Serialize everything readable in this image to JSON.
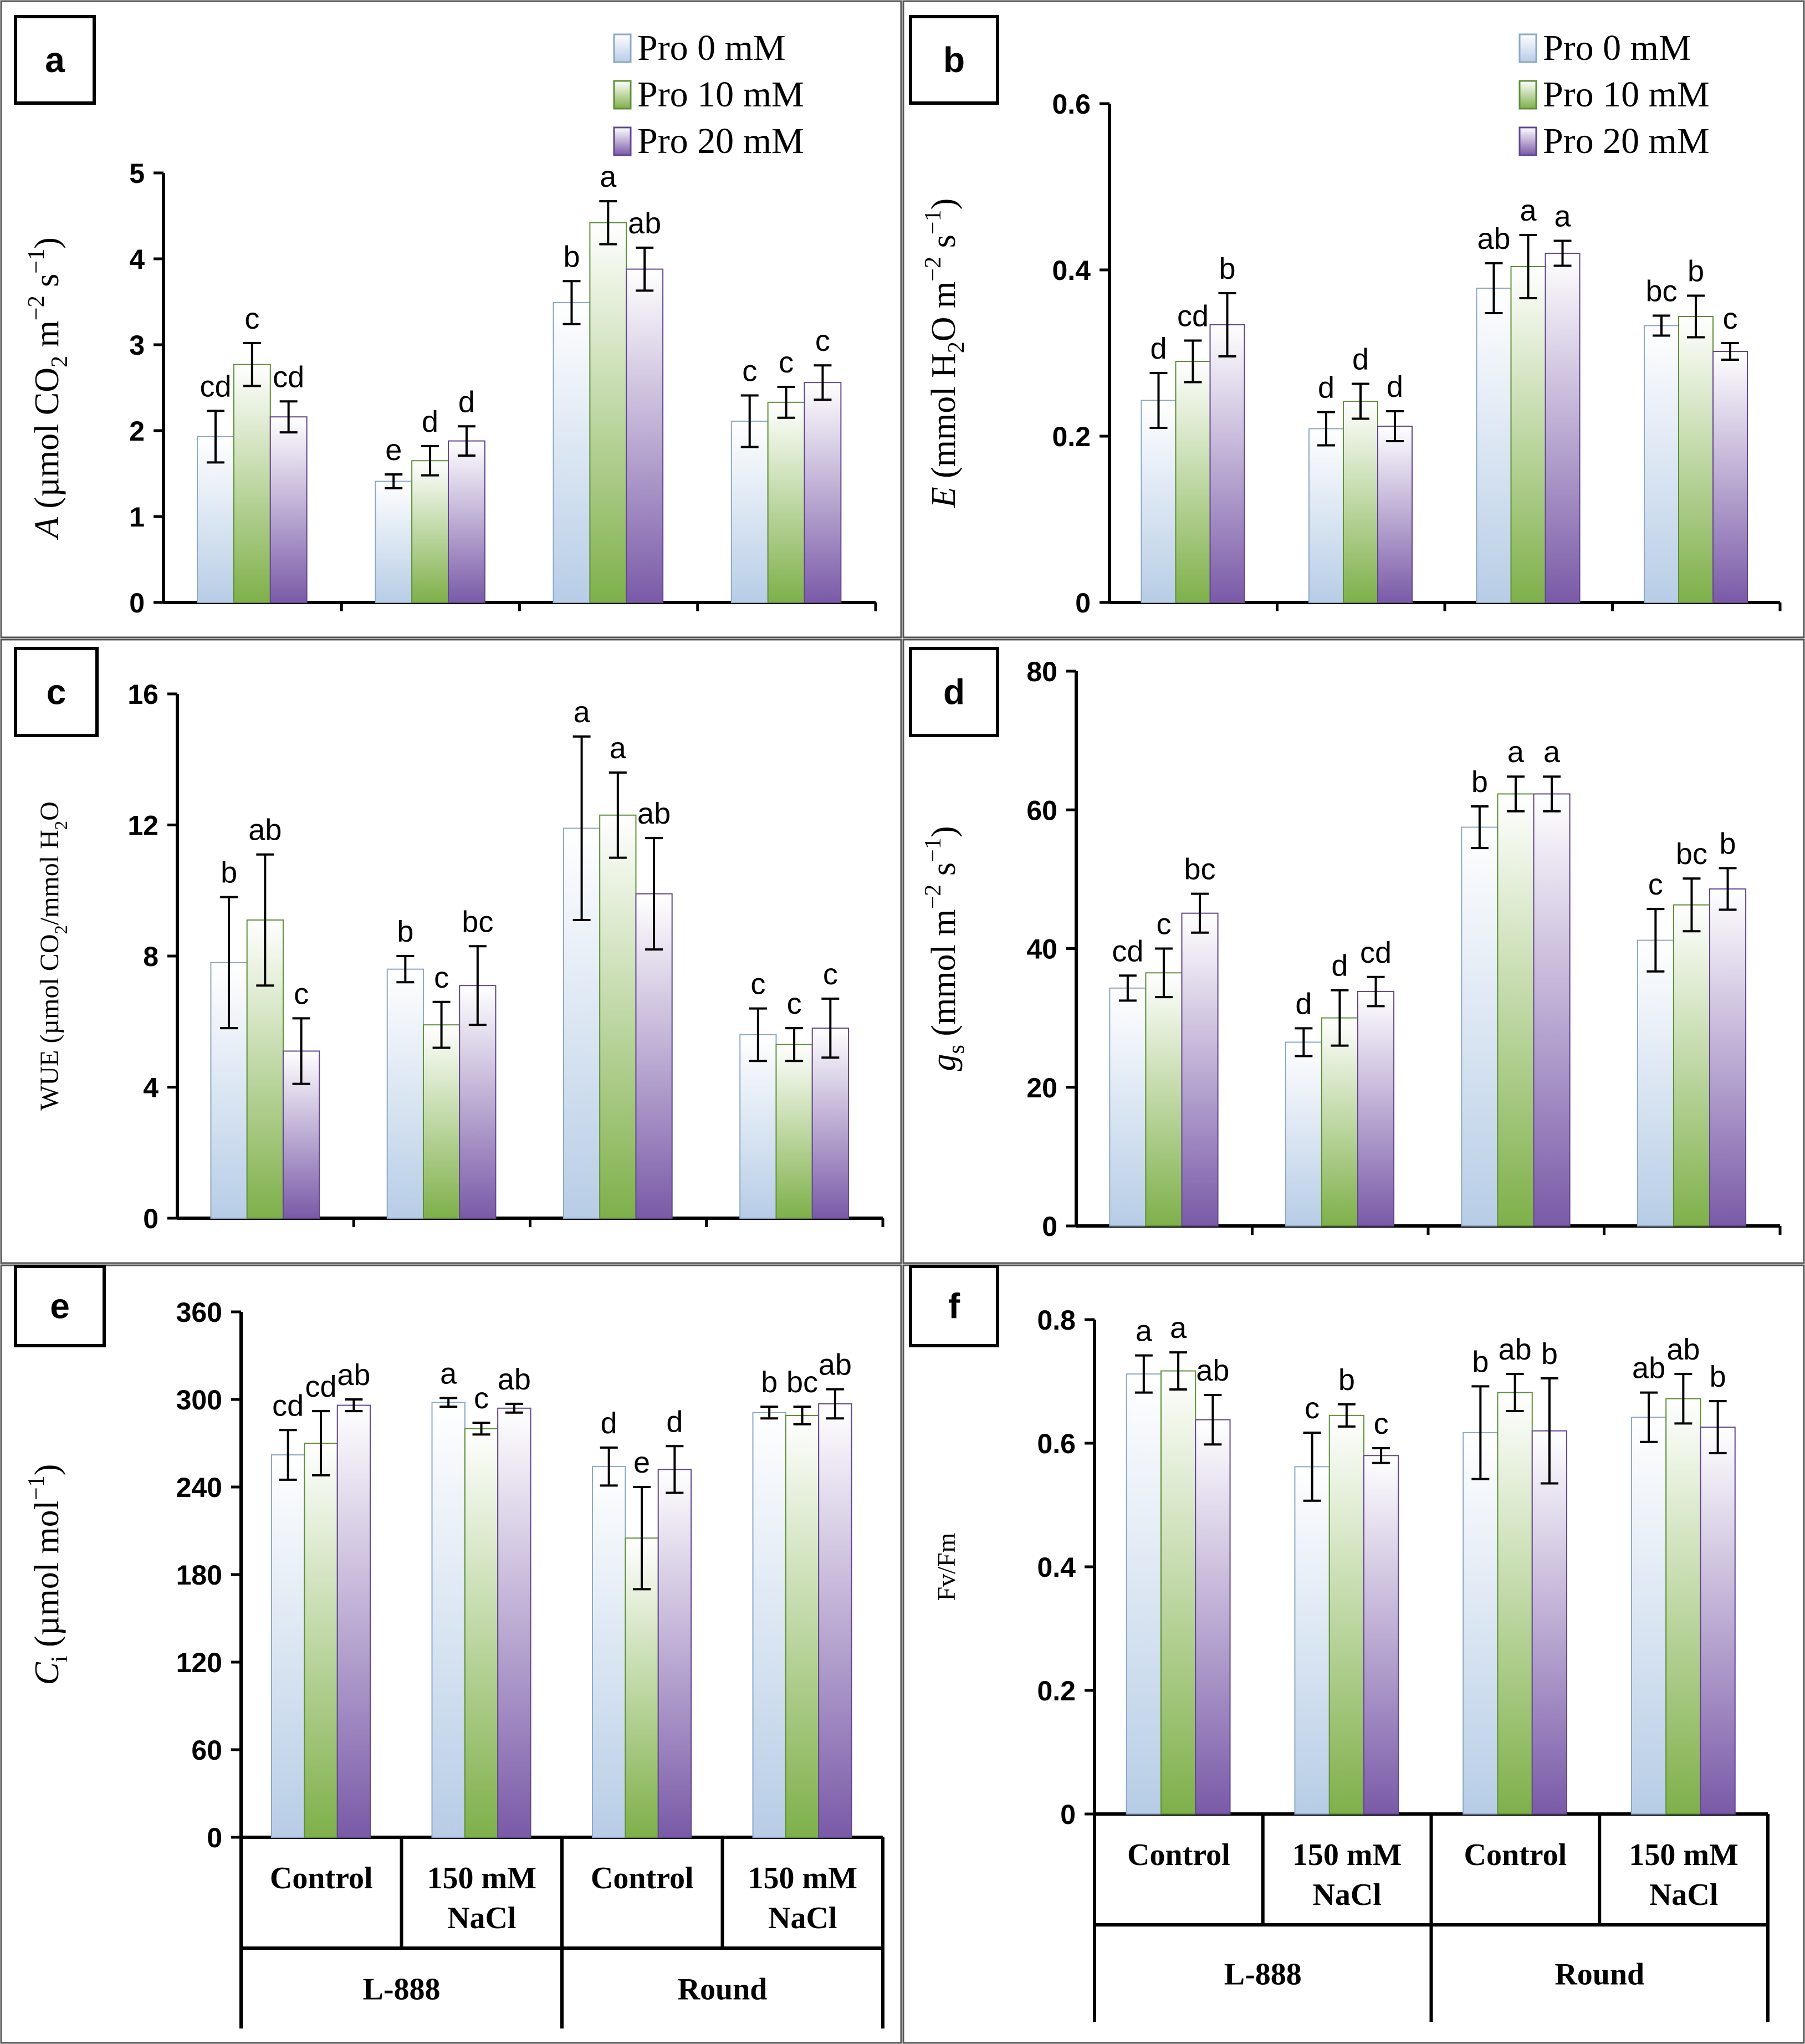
{
  "colors": {
    "pro0": "#cfe0f3",
    "pro10": "#a9cf7e",
    "pro20": "#9a83bd"
  },
  "legend": [
    "Pro 0 mM",
    "Pro 10 mM",
    "Pro 20 mM"
  ],
  "categories": {
    "treatments": [
      [
        "Control"
      ],
      [
        "150 mM",
        "NaCl"
      ],
      [
        "Control"
      ],
      [
        "150 mM",
        "NaCl"
      ]
    ],
    "cultivars": [
      "L-888",
      "Round"
    ]
  },
  "chart_data": [
    {
      "panel": "a",
      "type": "bar",
      "ylabel": [
        "A",
        " (µmol CO",
        "2",
        " m",
        "−2",
        " s",
        "−1",
        ")"
      ],
      "ylim": [
        0,
        5
      ],
      "yticks": [
        "0",
        "1",
        "2",
        "3",
        "4",
        "5"
      ],
      "series": [
        {
          "name": "Pro 0 mM",
          "values": [
            1.93,
            1.41,
            3.49,
            2.11
          ],
          "errors": [
            0.3,
            0.08,
            0.25,
            0.3
          ],
          "letters": [
            "cd",
            "e",
            "b",
            "c"
          ]
        },
        {
          "name": "Pro 10 mM",
          "values": [
            2.77,
            1.65,
            4.42,
            2.33
          ],
          "errors": [
            0.25,
            0.17,
            0.25,
            0.18
          ],
          "letters": [
            "c",
            "d",
            "a",
            "c"
          ]
        },
        {
          "name": "Pro 20 mM",
          "values": [
            2.16,
            1.88,
            3.88,
            2.56
          ],
          "errors": [
            0.18,
            0.17,
            0.25,
            0.2
          ],
          "letters": [
            "cd",
            "d",
            "ab",
            "c"
          ]
        }
      ]
    },
    {
      "panel": "b",
      "type": "bar",
      "ylabel": [
        "E",
        " (mmol H",
        "2",
        "O m",
        "−2",
        " s",
        "−1",
        ")"
      ],
      "ylim": [
        0,
        0.6
      ],
      "yticks": [
        "0",
        "0.2",
        "0.4",
        "0.6"
      ],
      "series": [
        {
          "name": "Pro 0 mM",
          "values": [
            0.243,
            0.209,
            0.378,
            0.333
          ],
          "errors": [
            0.033,
            0.02,
            0.03,
            0.012
          ],
          "letters": [
            "d",
            "d",
            "ab",
            "bc"
          ]
        },
        {
          "name": "Pro 10 mM",
          "values": [
            0.29,
            0.242,
            0.404,
            0.344
          ],
          "errors": [
            0.025,
            0.021,
            0.038,
            0.025
          ],
          "letters": [
            "cd",
            "d",
            "a",
            "b"
          ]
        },
        {
          "name": "Pro 20 mM",
          "values": [
            0.334,
            0.212,
            0.42,
            0.302
          ],
          "errors": [
            0.038,
            0.018,
            0.015,
            0.01
          ],
          "letters": [
            "b",
            "d",
            "a",
            "c"
          ]
        }
      ]
    },
    {
      "panel": "c",
      "type": "bar",
      "ylabel": [
        "WUE (µmol CO",
        "2",
        "/mmol H",
        "2",
        "O"
      ],
      "ylim": [
        0,
        16
      ],
      "yticks": [
        "0",
        "4",
        "8",
        "12",
        "16"
      ],
      "series": [
        {
          "name": "Pro 0 mM",
          "values": [
            7.8,
            7.6,
            11.9,
            5.6
          ],
          "errors": [
            2.0,
            0.4,
            2.8,
            0.8
          ],
          "letters": [
            "b",
            "b",
            "a",
            "c"
          ]
        },
        {
          "name": "Pro 10 mM",
          "values": [
            9.1,
            5.9,
            12.3,
            5.3
          ],
          "errors": [
            2.0,
            0.7,
            1.3,
            0.5
          ],
          "letters": [
            "ab",
            "c",
            "a",
            "c"
          ]
        },
        {
          "name": "Pro 20 mM",
          "values": [
            5.1,
            7.1,
            9.9,
            5.8
          ],
          "errors": [
            1.0,
            1.2,
            1.7,
            0.9
          ],
          "letters": [
            "c",
            "bc",
            "ab",
            "c"
          ]
        }
      ]
    },
    {
      "panel": "d",
      "type": "bar",
      "ylabel": [
        "g",
        "s",
        " (mmol m",
        "−2",
        " s",
        "−1",
        ")"
      ],
      "ylim": [
        0,
        80
      ],
      "yticks": [
        "0",
        "20",
        "40",
        "60",
        "80"
      ],
      "series": [
        {
          "name": "Pro 0 mM",
          "values": [
            34.3,
            26.5,
            57.5,
            41.2
          ],
          "errors": [
            1.8,
            2.0,
            3.0,
            4.5
          ],
          "letters": [
            "cd",
            "d",
            "b",
            "c"
          ]
        },
        {
          "name": "Pro 10 mM",
          "values": [
            36.5,
            30.0,
            62.3,
            46.3
          ],
          "errors": [
            3.5,
            4.0,
            2.5,
            3.8
          ],
          "letters": [
            "c",
            "d",
            "a",
            "bc"
          ]
        },
        {
          "name": "Pro 20 mM",
          "values": [
            45.1,
            33.8,
            62.3,
            48.6
          ],
          "errors": [
            2.8,
            2.1,
            2.5,
            3.0
          ],
          "letters": [
            "bc",
            "cd",
            "a",
            "b"
          ]
        }
      ]
    },
    {
      "panel": "e",
      "type": "bar",
      "ylabel": [
        "C",
        "i",
        " (µmol mol",
        "−1",
        ")"
      ],
      "ylim": [
        0,
        360
      ],
      "yticks": [
        "0",
        "60",
        "120",
        "180",
        "240",
        "300",
        "360"
      ],
      "series": [
        {
          "name": "Pro 0 mM",
          "values": [
            262,
            298,
            254,
            291
          ],
          "errors": [
            17,
            3,
            13,
            4
          ],
          "letters": [
            "cd",
            "a",
            "d",
            "b"
          ]
        },
        {
          "name": "Pro 10 mM",
          "values": [
            270,
            280,
            205,
            289
          ],
          "errors": [
            22,
            4,
            35,
            6
          ],
          "letters": [
            "cd",
            "c",
            "e",
            "bc"
          ]
        },
        {
          "name": "Pro 20 mM",
          "values": [
            296,
            294,
            252,
            297
          ],
          "errors": [
            4,
            3,
            16,
            10
          ],
          "letters": [
            "ab",
            "ab",
            "d",
            "ab"
          ]
        }
      ]
    },
    {
      "panel": "f",
      "type": "bar",
      "ylabel": [
        "Fv/Fm"
      ],
      "ylim": [
        0,
        0.8
      ],
      "yticks": [
        "0",
        "0.2",
        "0.4",
        "0.6",
        "0.8"
      ],
      "series": [
        {
          "name": "Pro 0 mM",
          "values": [
            0.712,
            0.562,
            0.617,
            0.642
          ],
          "errors": [
            0.03,
            0.055,
            0.075,
            0.04
          ],
          "letters": [
            "a",
            "c",
            "b",
            "ab"
          ]
        },
        {
          "name": "Pro 10 mM",
          "values": [
            0.717,
            0.645,
            0.682,
            0.672
          ],
          "errors": [
            0.03,
            0.018,
            0.03,
            0.04
          ],
          "letters": [
            "a",
            "b",
            "ab",
            "ab"
          ]
        },
        {
          "name": "Pro 20 mM",
          "values": [
            0.638,
            0.58,
            0.62,
            0.626
          ],
          "errors": [
            0.04,
            0.012,
            0.085,
            0.042
          ],
          "letters": [
            "ab",
            "c",
            "b",
            "b"
          ]
        }
      ]
    }
  ]
}
